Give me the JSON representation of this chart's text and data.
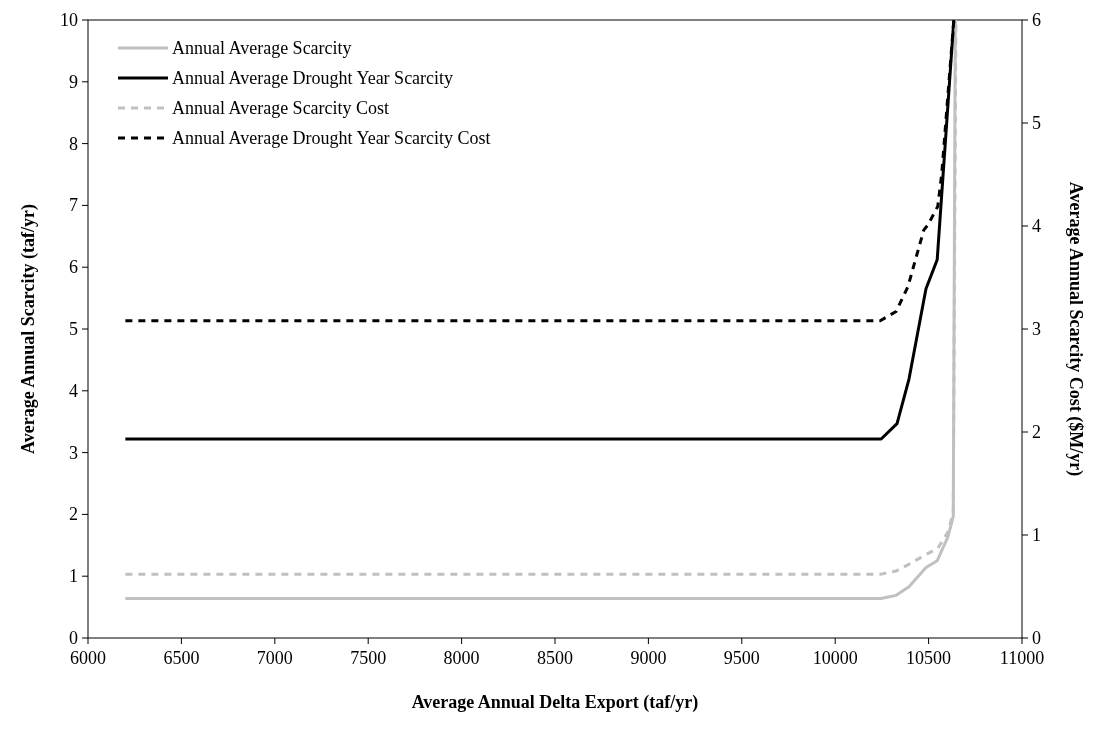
{
  "chart_data": {
    "type": "line",
    "xlabel": "Average Annual Delta Export (taf/yr)",
    "ylabel": "Average Annual Scarcity (taf/yr)",
    "y2label": "Average Annual Scarcity Cost ($M/yr)",
    "xlim": [
      6000,
      11000
    ],
    "xticks": [
      6000,
      6500,
      7000,
      7500,
      8000,
      8500,
      9000,
      9500,
      10000,
      10500,
      11000
    ],
    "ylim": [
      0,
      10
    ],
    "yticks": [
      0,
      1,
      2,
      3,
      4,
      5,
      6,
      7,
      8,
      9,
      10
    ],
    "y2lim": [
      0,
      6
    ],
    "y2ticks": [
      0,
      1,
      2,
      3,
      4,
      5,
      6
    ],
    "grid": false,
    "legend": "top left",
    "series": [
      {
        "name": "Annual Average Scarcity",
        "color": "#c0c0c0",
        "line_style": "solid",
        "x": [
          6200,
          10246,
          10326,
          10395,
          10486,
          10546,
          10604,
          10632,
          10643
        ],
        "values": [
          0.64,
          0.64,
          0.69,
          0.83,
          1.14,
          1.25,
          1.64,
          1.97,
          10
        ]
      },
      {
        "name": "Annual Average Drought Year Scarcity",
        "color": "#000000",
        "line_style": "solid",
        "x": [
          6200,
          10246,
          10331,
          10395,
          10486,
          10546,
          10635
        ],
        "values": [
          3.22,
          3.22,
          3.47,
          4.19,
          5.65,
          6.12,
          10
        ]
      },
      {
        "name": "Annual Average Scarcity Cost",
        "color": "#c0c0c0",
        "line_style": "dashed",
        "axis": "y2",
        "x": [
          6200,
          10246,
          10326,
          10389,
          10486,
          10549,
          10604,
          10632,
          10646
        ],
        "values": [
          0.62,
          0.62,
          0.65,
          0.71,
          0.81,
          0.87,
          1.03,
          1.22,
          6
        ]
      },
      {
        "name": "Annual Average Drought Year Scarcity Cost",
        "color": "#000000",
        "line_style": "dashed",
        "axis": "y2",
        "x": [
          6200,
          10241,
          10326,
          10389,
          10474,
          10496,
          10549,
          10570,
          10635
        ],
        "values": [
          3.08,
          3.08,
          3.17,
          3.41,
          3.96,
          4.01,
          4.19,
          4.5,
          6
        ]
      }
    ]
  }
}
